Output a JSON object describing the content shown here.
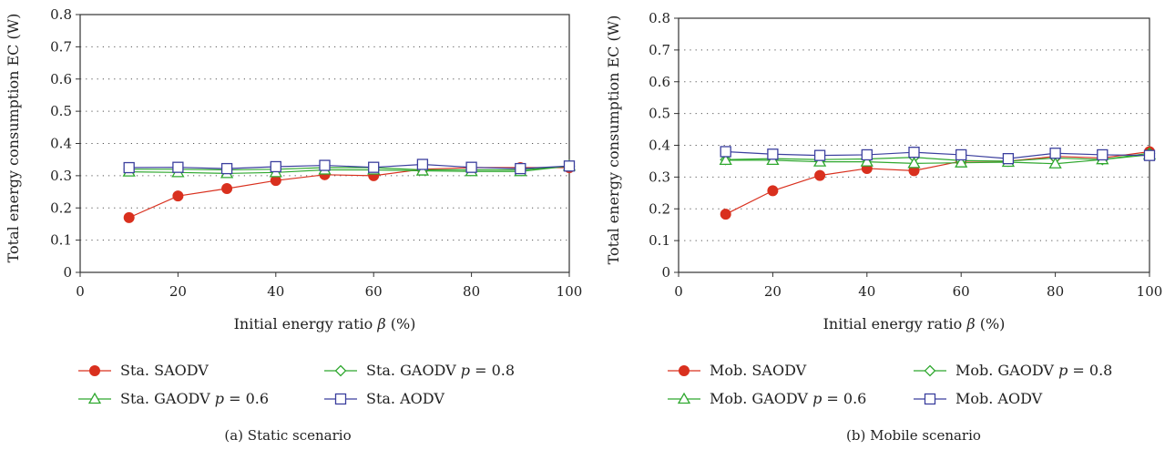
{
  "chart_data": [
    {
      "type": "line",
      "caption": "(a) Static scenario",
      "xlabel_main": "Initial energy ratio ",
      "xlabel_var": "β",
      "xlabel_unit": " (%)",
      "ylabel": "Total energy consumption EC (W)",
      "xlim": [
        0,
        100
      ],
      "ylim": [
        0,
        0.8
      ],
      "xticks": [
        0,
        20,
        40,
        60,
        80,
        100
      ],
      "yticks": [
        0,
        0.1,
        0.2,
        0.3,
        0.4,
        0.5,
        0.6,
        0.7,
        0.8
      ],
      "grid": "horizontal-dotted",
      "legend_placement": "below",
      "x": [
        10,
        20,
        30,
        40,
        50,
        60,
        70,
        80,
        90,
        100
      ],
      "series": [
        {
          "name": "Sta. SAODV",
          "color": "#d9301e",
          "marker": "filled-circle",
          "values": [
            0.17,
            0.237,
            0.26,
            0.285,
            0.303,
            0.3,
            0.32,
            0.325,
            0.325,
            0.325
          ]
        },
        {
          "name_main": "Sta. GAODV ",
          "name_var": "p",
          "name_tail": " = 0.8",
          "color": "#2fa82f",
          "marker": "open-diamond",
          "values": [
            0.32,
            0.32,
            0.318,
            0.32,
            0.325,
            0.325,
            0.318,
            0.318,
            0.318,
            0.33
          ]
        },
        {
          "name_main": "Sta. GAODV ",
          "name_var": "p",
          "name_tail": " = 0.6",
          "color": "#2fa82f",
          "marker": "open-triangle",
          "values": [
            0.312,
            0.31,
            0.307,
            0.31,
            0.318,
            0.318,
            0.315,
            0.313,
            0.313,
            0.33
          ]
        },
        {
          "name": "Sta. AODV",
          "color": "#3b3f9e",
          "marker": "open-square",
          "values": [
            0.325,
            0.326,
            0.322,
            0.328,
            0.332,
            0.326,
            0.335,
            0.326,
            0.322,
            0.33
          ]
        }
      ]
    },
    {
      "type": "line",
      "caption": "(b) Mobile scenario",
      "xlabel_main": "Initial energy ratio ",
      "xlabel_var": "β",
      "xlabel_unit": " (%)",
      "ylabel": "Total energy consumption EC (W)",
      "xlim": [
        0,
        100
      ],
      "ylim": [
        0,
        0.8
      ],
      "xticks": [
        0,
        20,
        40,
        60,
        80,
        100
      ],
      "yticks": [
        0,
        0.1,
        0.2,
        0.3,
        0.4,
        0.5,
        0.6,
        0.7,
        0.8
      ],
      "grid": "horizontal-dotted",
      "legend_placement": "below",
      "x": [
        10,
        20,
        30,
        40,
        50,
        60,
        70,
        80,
        90,
        100
      ],
      "series": [
        {
          "name": "Mob. SAODV",
          "color": "#d9301e",
          "marker": "filled-circle",
          "values": [
            0.183,
            0.257,
            0.305,
            0.327,
            0.32,
            0.35,
            0.35,
            0.365,
            0.36,
            0.38
          ]
        },
        {
          "name_main": "Mob. GAODV ",
          "name_var": "p",
          "name_tail": " = 0.8",
          "color": "#2fa82f",
          "marker": "open-diamond",
          "values": [
            0.355,
            0.358,
            0.355,
            0.357,
            0.362,
            0.352,
            0.35,
            0.36,
            0.355,
            0.375
          ]
        },
        {
          "name_main": "Mob. GAODV ",
          "name_var": "p",
          "name_tail": " = 0.6",
          "color": "#2fa82f",
          "marker": "open-triangle",
          "values": [
            0.353,
            0.353,
            0.348,
            0.348,
            0.343,
            0.345,
            0.347,
            0.342,
            0.355,
            0.37
          ]
        },
        {
          "name": "Mob. AODV",
          "color": "#3b3f9e",
          "marker": "open-square",
          "values": [
            0.38,
            0.372,
            0.368,
            0.37,
            0.378,
            0.37,
            0.358,
            0.375,
            0.37,
            0.368
          ]
        }
      ]
    }
  ]
}
